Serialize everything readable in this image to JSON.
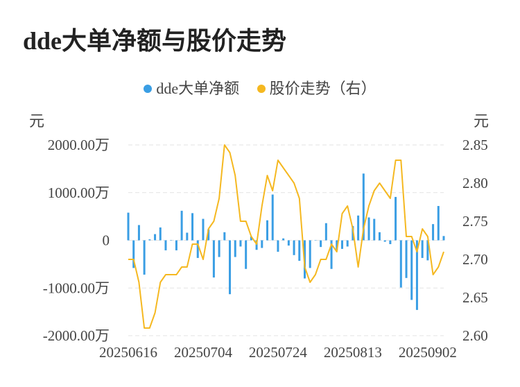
{
  "title": "dde大单净额与股价走势",
  "legend": {
    "series1": "dde大单净额",
    "series2": "股价走势（右）"
  },
  "colors": {
    "bar": "#3a9ee4",
    "line": "#f5b820",
    "grid": "#e3e3e3"
  },
  "chart_data": {
    "type": "bar+line",
    "title": "dde大单净额与股价走势",
    "y_left_unit": "元",
    "y_right_unit": "元",
    "y_left_ticks": [
      "2000.00万",
      "1000.00万",
      "0",
      "-1000.00万",
      "-2000.00万"
    ],
    "y_right_ticks": [
      "2.85",
      "2.80",
      "2.75",
      "2.70",
      "2.65",
      "2.60"
    ],
    "ylim_left": [
      -2000,
      2000
    ],
    "ylim_right": [
      2.6,
      2.85
    ],
    "x_ticks": [
      "20250616",
      "20250704",
      "20250724",
      "20250813",
      "20250902"
    ],
    "x_tick_index": [
      0,
      14,
      28,
      42,
      56
    ],
    "series": [
      {
        "name": "dde大单净额",
        "unit": "万",
        "type": "bar",
        "values": [
          580,
          -580,
          320,
          -720,
          20,
          130,
          270,
          -210,
          0,
          -210,
          620,
          160,
          570,
          -370,
          450,
          230,
          -780,
          -350,
          170,
          -1130,
          -350,
          -130,
          -600,
          80,
          -200,
          -160,
          420,
          960,
          -240,
          40,
          -110,
          -310,
          -430,
          -800,
          -580,
          0,
          -140,
          360,
          -600,
          -210,
          -180,
          -130,
          300,
          520,
          1400,
          480,
          450,
          170,
          -30,
          -80,
          910,
          -990,
          -790,
          -1250,
          -1460,
          -370,
          -420,
          340,
          720,
          90
        ],
        "axis": "left"
      },
      {
        "name": "股价走势（右）",
        "type": "line",
        "values": [
          2.7,
          2.7,
          2.67,
          2.61,
          2.61,
          2.63,
          2.67,
          2.68,
          2.68,
          2.68,
          2.69,
          2.69,
          2.72,
          2.72,
          2.7,
          2.74,
          2.75,
          2.78,
          2.85,
          2.84,
          2.81,
          2.75,
          2.75,
          2.73,
          2.72,
          2.77,
          2.81,
          2.79,
          2.83,
          2.82,
          2.81,
          2.8,
          2.78,
          2.69,
          2.67,
          2.68,
          2.7,
          2.7,
          2.72,
          2.71,
          2.76,
          2.77,
          2.74,
          2.69,
          2.74,
          2.77,
          2.79,
          2.8,
          2.79,
          2.78,
          2.83,
          2.83,
          2.73,
          2.73,
          2.71,
          2.74,
          2.73,
          2.68,
          2.69,
          2.71
        ],
        "axis": "right"
      }
    ]
  }
}
